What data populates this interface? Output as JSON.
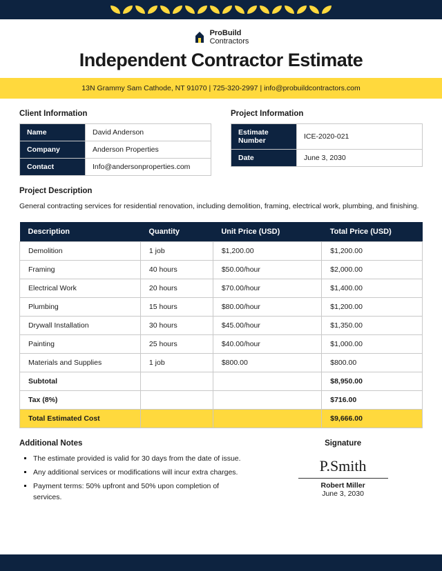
{
  "brand": {
    "name": "ProBuild",
    "sub": "Contractors"
  },
  "title": "Independent Contractor Estimate",
  "contact_bar": "13N Grammy Sam Cathode, NT 91070 |  725-320-2997 | info@probuildcontractors.com",
  "client": {
    "heading": "Client Information",
    "rows": [
      {
        "label": "Name",
        "value": "David Anderson"
      },
      {
        "label": "Company",
        "value": "Anderson Properties"
      },
      {
        "label": "Contact",
        "value": "Info@andersonproperties.com"
      }
    ]
  },
  "project": {
    "heading": "Project Information",
    "rows": [
      {
        "label": "Estimate Number",
        "value": "ICE-2020-021"
      },
      {
        "label": "Date",
        "value": "June 3, 2030"
      }
    ]
  },
  "description": {
    "heading": "Project Description",
    "text": "General contracting services for residential renovation, including demolition, framing, electrical work, plumbing, and finishing."
  },
  "table": {
    "headers": [
      "Description",
      "Quantity",
      "Unit Price (USD)",
      "Total Price (USD)"
    ],
    "rows": [
      [
        "Demolition",
        "1 job",
        "$1,200.00",
        "$1,200.00"
      ],
      [
        "Framing",
        "40 hours",
        "$50.00/hour",
        "$2,000.00"
      ],
      [
        "Electrical Work",
        "20 hours",
        "$70.00/hour",
        "$1,400.00"
      ],
      [
        "Plumbing",
        "15 hours",
        "$80.00/hour",
        "$1,200.00"
      ],
      [
        "Drywall Installation",
        "30 hours",
        "$45.00/hour",
        "$1,350.00"
      ],
      [
        "Painting",
        "25 hours",
        "$40.00/hour",
        "$1,000.00"
      ],
      [
        "Materials and Supplies",
        "1 job",
        "$800.00",
        "$800.00"
      ]
    ],
    "subtotal": {
      "label": "Subtotal",
      "value": "$8,950.00"
    },
    "tax": {
      "label": "Tax (8%)",
      "value": "$716.00"
    },
    "total": {
      "label": "Total Estimated Cost",
      "value": "$9,666.00"
    }
  },
  "notes": {
    "heading": "Additional Notes",
    "items": [
      "The estimate provided is valid for 30 days from the date of issue.",
      "Any additional services or modifications will incur extra charges.",
      "Payment terms: 50% upfront and 50% upon completion of services."
    ]
  },
  "signature": {
    "heading": "Signature",
    "script": "P.Smith",
    "name": "Robert Miller",
    "date": "June 3, 2030"
  },
  "colors": {
    "navy": "#0d2340",
    "yellow": "#ffd93d",
    "border": "#c8c8c8"
  }
}
